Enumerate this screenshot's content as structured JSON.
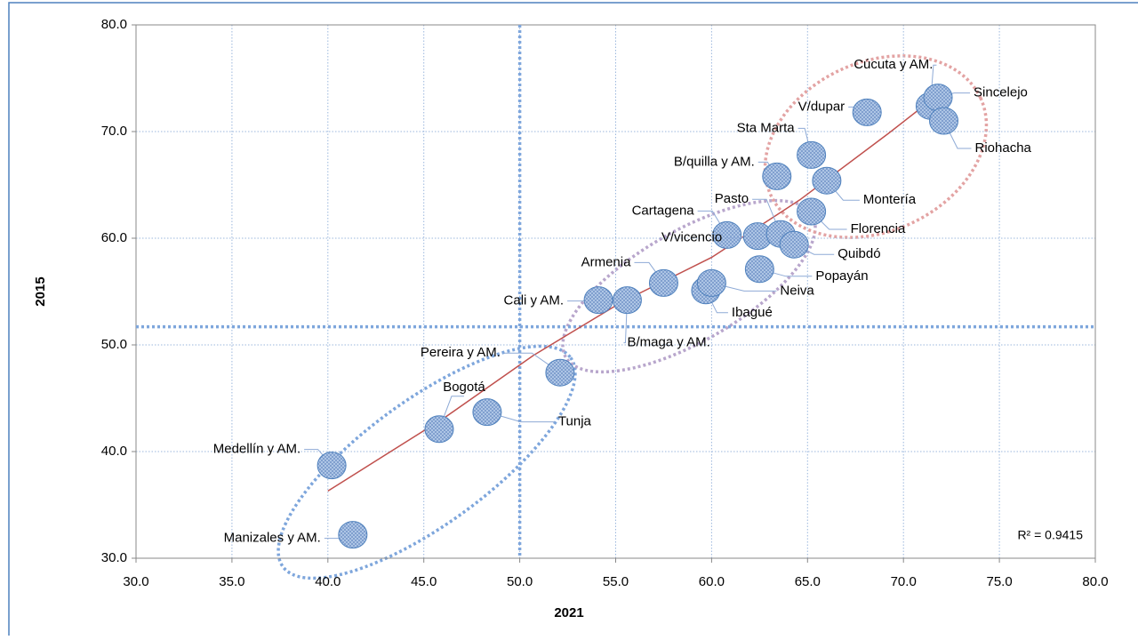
{
  "chart_data": {
    "type": "scatter",
    "xlabel": "2021",
    "ylabel": "2015",
    "xlim": [
      30,
      80
    ],
    "ylim": [
      30,
      80
    ],
    "xticks": [
      {
        "value": 30,
        "label": "30.0"
      },
      {
        "value": 35,
        "label": "35.0"
      },
      {
        "value": 40,
        "label": "40.0"
      },
      {
        "value": 45,
        "label": "45.0"
      },
      {
        "value": 50,
        "label": "50.0"
      },
      {
        "value": 55,
        "label": "55.0"
      },
      {
        "value": 60,
        "label": "60.0"
      },
      {
        "value": 65,
        "label": "65.0"
      },
      {
        "value": 70,
        "label": "70.0"
      },
      {
        "value": 75,
        "label": "75.0"
      },
      {
        "value": 80,
        "label": "80.0"
      }
    ],
    "yticks": [
      {
        "value": 30,
        "label": "30.0"
      },
      {
        "value": 40,
        "label": "40.0"
      },
      {
        "value": 50,
        "label": "50.0"
      },
      {
        "value": 60,
        "label": "60.0"
      },
      {
        "value": 70,
        "label": "70.0"
      },
      {
        "value": 80,
        "label": "80.0"
      }
    ],
    "grid": true,
    "color": "#4f81bd",
    "labels": [
      "Manizales y AM.",
      "Medellín y AM.",
      "Bogotá",
      "Tunja",
      "Pereira y AM.",
      "Cali y AM.",
      "B/maga y AM.",
      "Armenia",
      "Ibagué",
      "Neiva",
      "Popayán",
      "Cartagena",
      "V/vicencio",
      "Pasto",
      "Quibdó",
      "Florencia",
      "B/quilla y AM.",
      "Montería",
      "Sta Marta",
      "V/dupar",
      "Cúcuta y AM.",
      "Sincelejo",
      "Riohacha"
    ],
    "x": [
      41.3,
      40.2,
      45.8,
      48.3,
      52.1,
      54.1,
      55.6,
      57.5,
      59.7,
      60.0,
      62.5,
      60.8,
      62.4,
      63.6,
      64.3,
      65.2,
      63.4,
      66.0,
      65.2,
      68.1,
      71.4,
      71.8,
      72.1
    ],
    "y": [
      32.2,
      38.7,
      42.1,
      43.7,
      47.4,
      54.2,
      54.2,
      55.8,
      55.1,
      55.8,
      57.1,
      60.3,
      60.2,
      60.4,
      59.4,
      62.5,
      65.8,
      65.4,
      67.8,
      71.8,
      72.4,
      73.2,
      71.0
    ],
    "reference_lines": {
      "x": 50,
      "y": 51.7
    },
    "trendline": {
      "color": "#c0504d",
      "x": [
        40,
        46.1,
        50.7,
        55.3,
        60,
        64.6,
        69.2,
        71.3
      ],
      "y": [
        36.3,
        43.2,
        49.0,
        54.0,
        58.2,
        63.6,
        69.8,
        72.75
      ]
    },
    "annotation": "R² = 0.9415"
  }
}
